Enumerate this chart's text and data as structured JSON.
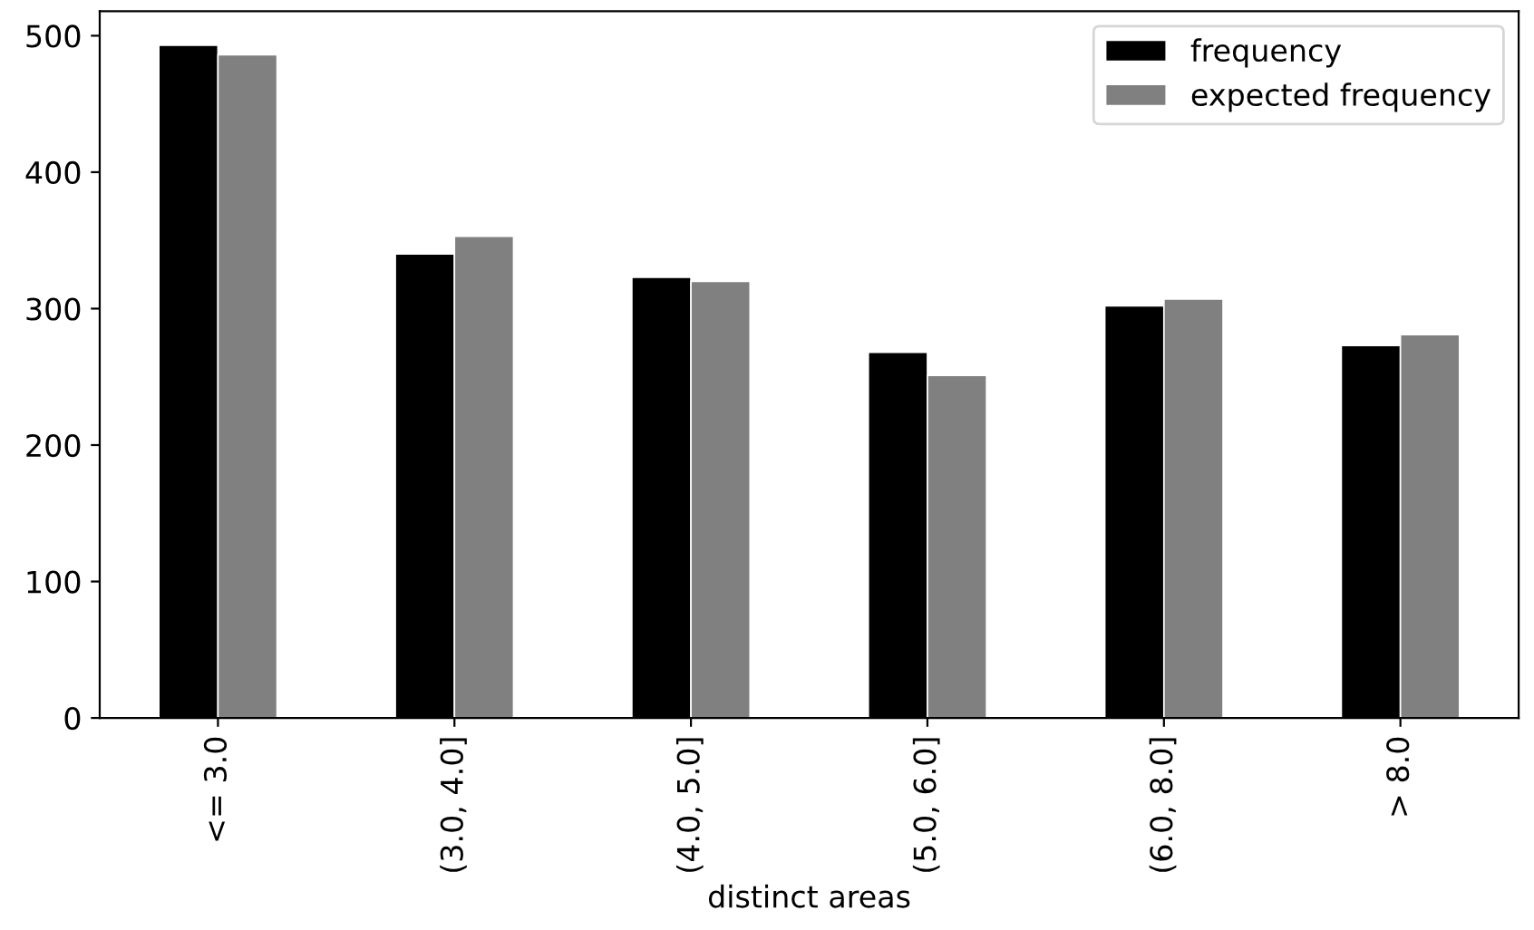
{
  "chart_data": {
    "type": "bar",
    "xlabel": "distinct areas",
    "categories": [
      "<= 3.0",
      "(3.0, 4.0]",
      "(4.0, 5.0]",
      "(5.0, 6.0]",
      "(6.0, 8.0]",
      "> 8.0"
    ],
    "series": [
      {
        "name": "frequency",
        "color": "#000000",
        "values": [
          493,
          340,
          323,
          268,
          302,
          273
        ]
      },
      {
        "name": "expected frequency",
        "color": "#808080",
        "values": [
          486,
          353,
          320,
          251,
          307,
          281
        ]
      }
    ],
    "ylim": [
      0,
      518
    ],
    "yticks": [
      0,
      100,
      200,
      300,
      400,
      500
    ],
    "legend": "top right",
    "grid": false
  }
}
